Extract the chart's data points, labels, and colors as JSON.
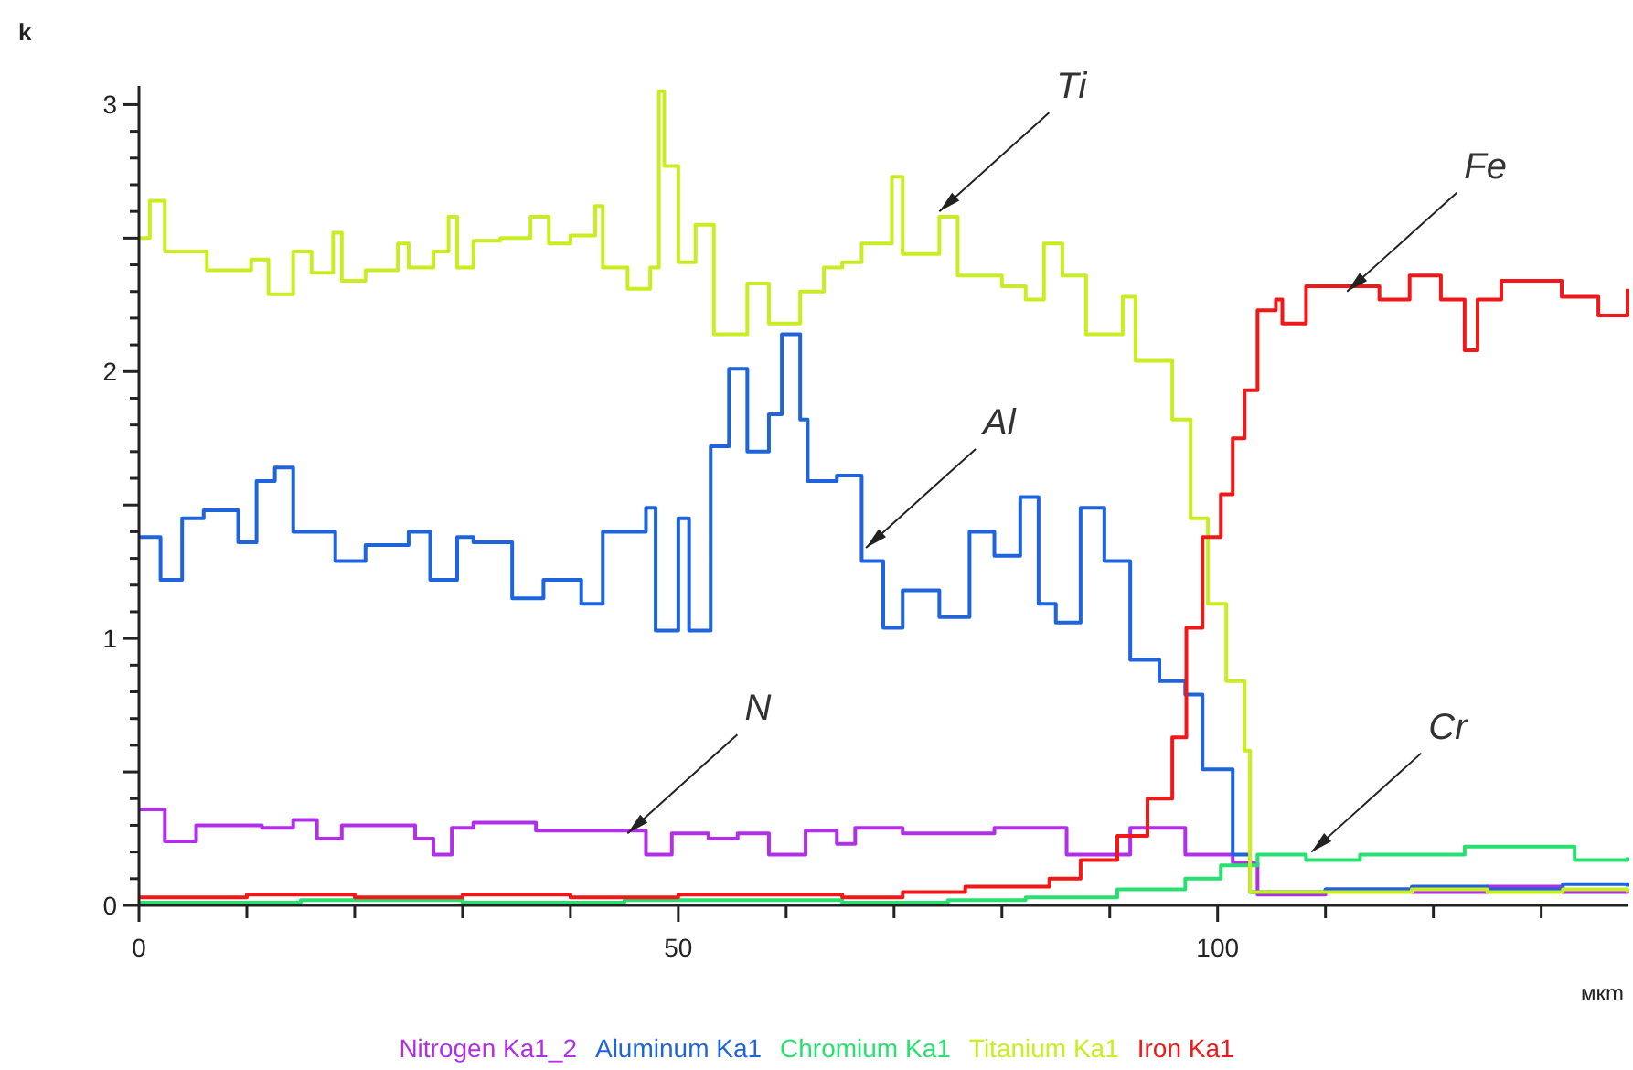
{
  "chart_data": {
    "type": "step",
    "xlabel": "мкm",
    "ylabel": "k",
    "xlim": [
      0,
      138
    ],
    "ylim": [
      0,
      3.07
    ],
    "xticks": [
      0,
      {
        "value": 10,
        "label": null
      },
      {
        "value": 20,
        "label": null
      },
      {
        "value": 30,
        "label": null
      },
      {
        "value": 40,
        "label": null
      },
      50,
      {
        "value": 60,
        "label": null
      },
      {
        "value": 70,
        "label": null
      },
      {
        "value": 80,
        "label": null
      },
      {
        "value": 90,
        "label": null
      },
      100,
      {
        "value": 110,
        "label": null
      },
      {
        "value": 120,
        "label": null
      },
      {
        "value": 130,
        "label": null
      }
    ],
    "yticks": [
      0,
      {
        "value": 0.1,
        "label": null
      },
      {
        "value": 0.2,
        "label": null
      },
      {
        "value": 0.3,
        "label": null
      },
      {
        "value": 0.4,
        "label": null
      },
      {
        "value": 0.5,
        "label": null
      },
      {
        "value": 0.6,
        "label": null
      },
      {
        "value": 0.7,
        "label": null
      },
      {
        "value": 0.8,
        "label": null
      },
      {
        "value": 0.9,
        "label": null
      },
      1,
      {
        "value": 1.1,
        "label": null
      },
      {
        "value": 1.2,
        "label": null
      },
      {
        "value": 1.3,
        "label": null
      },
      {
        "value": 1.4,
        "label": null
      },
      {
        "value": 1.5,
        "label": null
      },
      {
        "value": 1.6,
        "label": null
      },
      {
        "value": 1.7,
        "label": null
      },
      {
        "value": 1.8,
        "label": null
      },
      {
        "value": 1.9,
        "label": null
      },
      2,
      {
        "value": 2.1,
        "label": null
      },
      {
        "value": 2.2,
        "label": null
      },
      {
        "value": 2.3,
        "label": null
      },
      {
        "value": 2.4,
        "label": null
      },
      {
        "value": 2.5,
        "label": null
      },
      {
        "value": 2.6,
        "label": null
      },
      {
        "value": 2.7,
        "label": null
      },
      {
        "value": 2.8,
        "label": null
      },
      {
        "value": 2.9,
        "label": null
      },
      3
    ],
    "grid": false,
    "legend": "bottom",
    "series": [
      {
        "name": "Nitrogen Ka1_2",
        "color": "#b030e8",
        "x": [
          0,
          2.4,
          5.3,
          11.4,
          14.3,
          16.5,
          18.8,
          25.6,
          27.3,
          29,
          31,
          36.8,
          44.3,
          47,
          49.4,
          52.8,
          55.5,
          58.4,
          61.8,
          64.7,
          66.4,
          70.8,
          79.3,
          86,
          91.9,
          94,
          97,
          101.4,
          103.7,
          110,
          118,
          125,
          132,
          138
        ],
        "values": [
          0.36,
          0.24,
          0.3,
          0.29,
          0.32,
          0.25,
          0.3,
          0.25,
          0.19,
          0.29,
          0.31,
          0.28,
          0.28,
          0.19,
          0.27,
          0.25,
          0.27,
          0.19,
          0.28,
          0.23,
          0.29,
          0.27,
          0.29,
          0.19,
          0.29,
          0.29,
          0.19,
          0.16,
          0.04,
          0.06,
          0.05,
          0.07,
          0.05,
          0.06
        ]
      },
      {
        "name": "Aluminum Ka1",
        "color": "#1e64dc",
        "x": [
          0,
          2,
          4,
          6,
          9.2,
          10.9,
          12.6,
          14.3,
          18.2,
          21,
          25,
          27,
          29.5,
          31,
          34.6,
          37.5,
          41,
          43,
          47,
          47.9,
          50,
          51,
          53,
          54.7,
          56.4,
          58.4,
          59.6,
          61.3,
          62,
          64.7,
          67,
          69,
          70.8,
          74.2,
          77,
          79.3,
          81.7,
          83.4,
          85,
          87.3,
          89.5,
          91.9,
          94.6,
          97,
          98.6,
          101.4,
          103,
          110,
          118,
          125,
          132,
          138
        ],
        "values": [
          1.38,
          1.22,
          1.45,
          1.48,
          1.36,
          1.59,
          1.64,
          1.4,
          1.29,
          1.35,
          1.4,
          1.22,
          1.38,
          1.36,
          1.15,
          1.22,
          1.13,
          1.4,
          1.49,
          1.03,
          1.45,
          1.03,
          1.72,
          2.01,
          1.7,
          1.84,
          2.14,
          1.82,
          1.59,
          1.61,
          1.29,
          1.04,
          1.18,
          1.08,
          1.4,
          1.31,
          1.53,
          1.13,
          1.06,
          1.49,
          1.29,
          0.92,
          0.84,
          0.79,
          0.51,
          0.19,
          0.05,
          0.06,
          0.07,
          0.06,
          0.08,
          0.07
        ]
      },
      {
        "name": "Chromium Ka1",
        "color": "#28e070",
        "x": [
          0,
          15,
          30,
          45,
          60,
          65.2,
          75,
          82.2,
          90.7,
          97,
          100.3,
          103.7,
          108.2,
          113.2,
          122.9,
          133.1,
          138
        ],
        "values": [
          0.01,
          0.02,
          0.01,
          0.02,
          0.02,
          0.01,
          0.02,
          0.03,
          0.06,
          0.1,
          0.15,
          0.19,
          0.17,
          0.19,
          0.22,
          0.17,
          0.18
        ]
      },
      {
        "name": "Titanium Ka1",
        "color": "#c8ee20",
        "x": [
          0,
          1,
          2.4,
          6.3,
          10.4,
          12,
          14.3,
          16,
          18,
          18.8,
          21,
          24,
          25,
          27.3,
          28.7,
          29.5,
          31,
          33.5,
          36.3,
          38,
          40,
          42.3,
          43,
          45.3,
          47.4,
          48.2,
          48.7,
          50,
          51.6,
          53.3,
          56.4,
          58.4,
          61.3,
          63.5,
          65.2,
          67,
          69.8,
          70.8,
          74.2,
          75.9,
          80,
          82.2,
          83.9,
          85.6,
          87.8,
          91.2,
          92.4,
          95.8,
          97.5,
          99.1,
          100.8,
          102.5,
          103,
          110,
          118,
          125,
          132,
          138
        ],
        "values": [
          2.5,
          2.64,
          2.45,
          2.38,
          2.42,
          2.29,
          2.45,
          2.37,
          2.52,
          2.34,
          2.38,
          2.48,
          2.39,
          2.45,
          2.58,
          2.39,
          2.49,
          2.5,
          2.58,
          2.48,
          2.51,
          2.62,
          2.39,
          2.31,
          2.39,
          3.05,
          2.77,
          2.41,
          2.55,
          2.14,
          2.33,
          2.18,
          2.3,
          2.39,
          2.41,
          2.48,
          2.73,
          2.44,
          2.58,
          2.36,
          2.32,
          2.27,
          2.48,
          2.36,
          2.14,
          2.28,
          2.04,
          1.82,
          1.45,
          1.13,
          0.84,
          0.58,
          0.05,
          0.05,
          0.06,
          0.05,
          0.06,
          0.05
        ]
      },
      {
        "name": "Iron Ka1",
        "color": "#f01818",
        "x": [
          0,
          10,
          20,
          30,
          40,
          50,
          60,
          65.2,
          70.8,
          76.6,
          84.4,
          87.3,
          90.7,
          93.5,
          95.8,
          97.1,
          98.6,
          100.3,
          101.4,
          102.5,
          103.7,
          105.4,
          106,
          108.2,
          111.5,
          115,
          117.8,
          120.7,
          122.9,
          124.1,
          126.3,
          131.9,
          135.3,
          138
        ],
        "values": [
          0.03,
          0.04,
          0.03,
          0.04,
          0.03,
          0.04,
          0.04,
          0.03,
          0.05,
          0.07,
          0.1,
          0.17,
          0.26,
          0.4,
          0.63,
          1.04,
          1.38,
          1.54,
          1.75,
          1.93,
          2.23,
          2.27,
          2.18,
          2.32,
          2.32,
          2.27,
          2.36,
          2.27,
          2.08,
          2.27,
          2.34,
          2.28,
          2.21,
          2.31
        ]
      }
    ],
    "annotations": [
      {
        "text": "Ti",
        "x": 74.2,
        "y": 2.6
      },
      {
        "text": "Al",
        "x": 67.4,
        "y": 1.34
      },
      {
        "text": "Fe",
        "x": 112,
        "y": 2.3
      },
      {
        "text": "N",
        "x": 45.3,
        "y": 0.27
      },
      {
        "text": "Cr",
        "x": 108.7,
        "y": 0.2
      }
    ]
  }
}
